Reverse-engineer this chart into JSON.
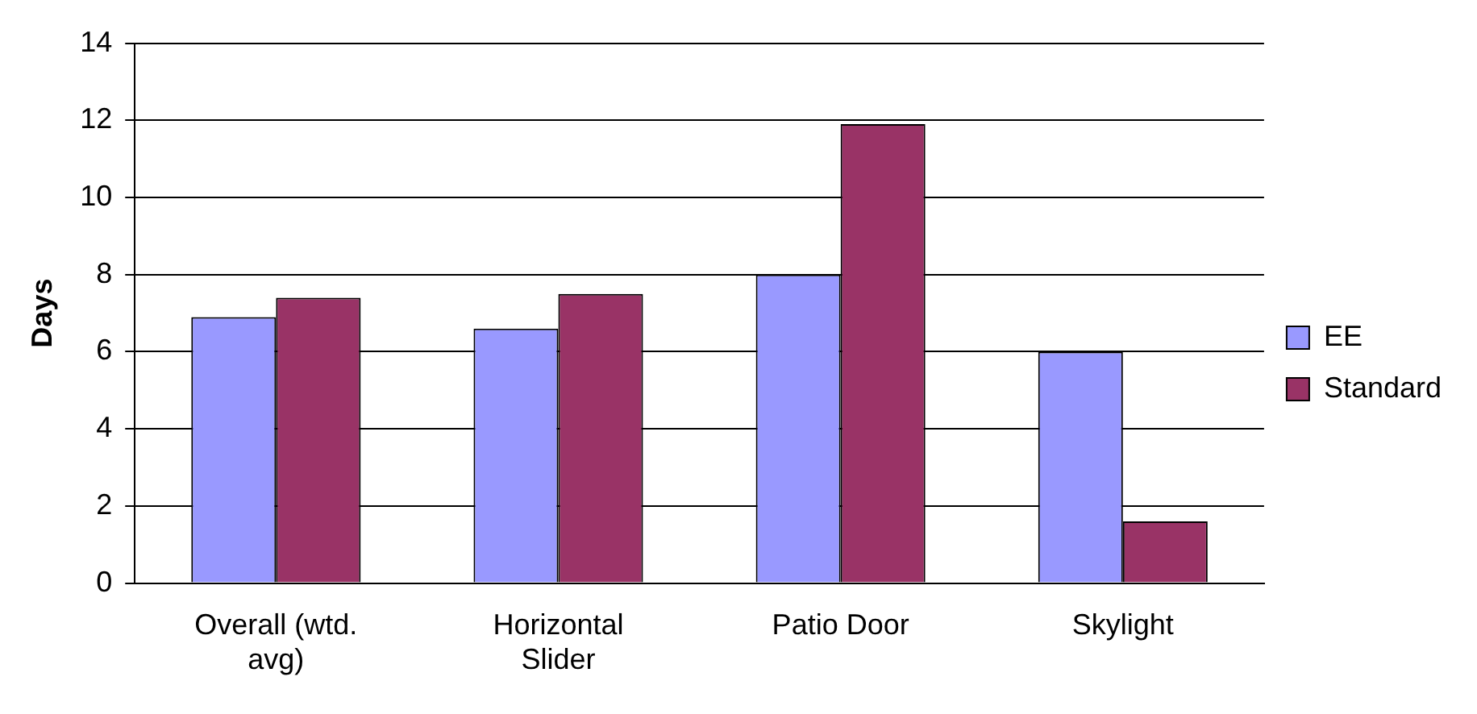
{
  "chart_data": {
    "type": "bar",
    "ylabel": "Days",
    "categories": [
      "Overall (wtd. avg)",
      "Horizontal Slider",
      "Patio Door",
      "Skylight"
    ],
    "series": [
      {
        "name": "EE",
        "color": "#9999ff",
        "values": [
          6.9,
          6.6,
          8.0,
          6.0
        ]
      },
      {
        "name": "Standard",
        "color": "#993366",
        "values": [
          7.4,
          7.5,
          11.9,
          1.6
        ]
      }
    ],
    "ylim": [
      0,
      14
    ],
    "yticks": [
      0,
      2,
      4,
      6,
      8,
      10,
      12,
      14
    ],
    "grid": "y",
    "legend": "right"
  }
}
